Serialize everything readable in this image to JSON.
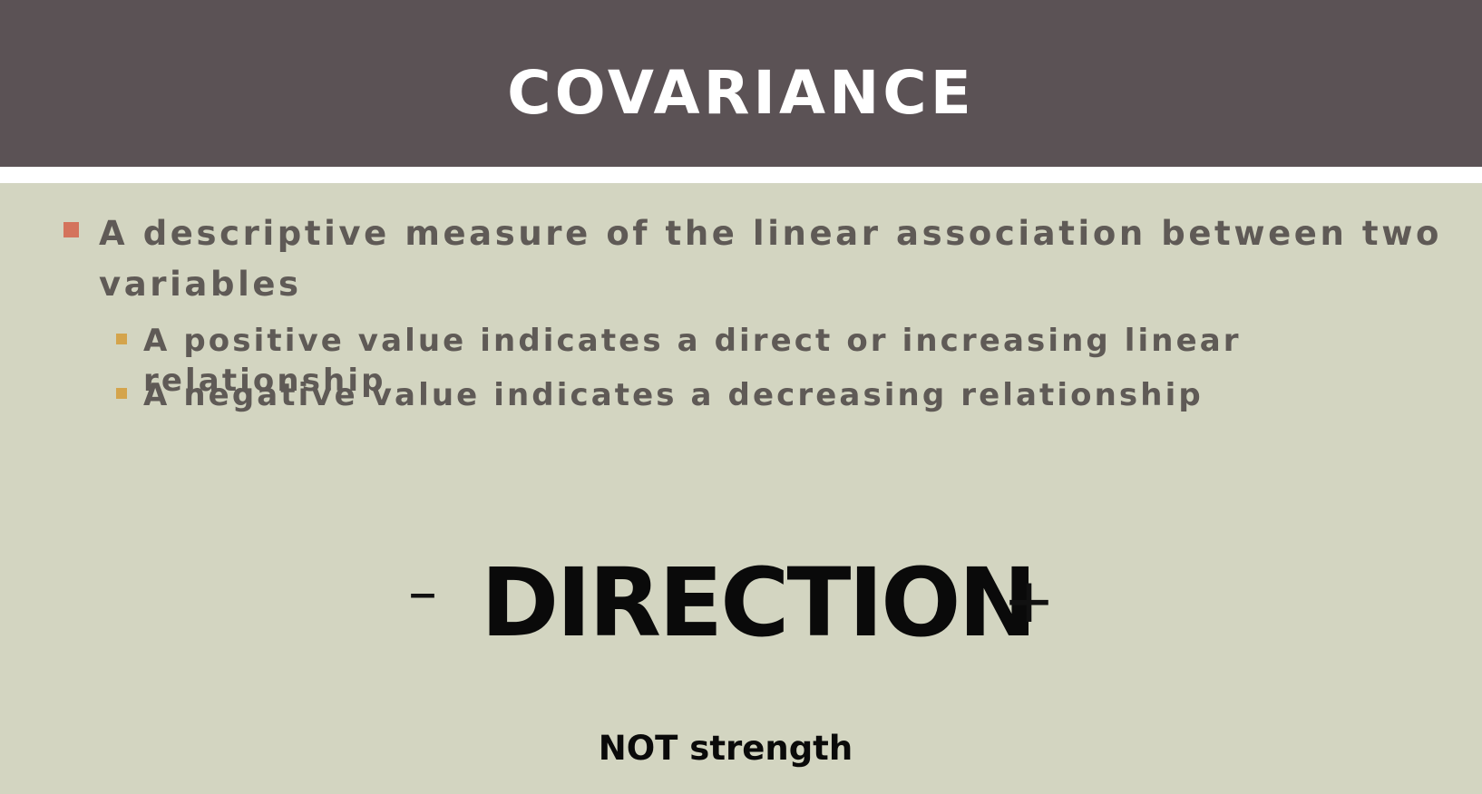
{
  "title": "COVARIANCE",
  "bullets": [
    {
      "text": "A descriptive measure of the linear association between two variables",
      "marker_color": "#d4735c",
      "sub_bullets": [
        {
          "text": "A positive value indicates a direct or increasing linear relationship"
        },
        {
          "text": "A negative value indicates a decreasing relationship"
        }
      ],
      "sub_marker_color": "#d4a44c"
    }
  ],
  "direction": {
    "minus": "–",
    "label": "DIRECTION",
    "plus": "+"
  },
  "footer_note": "NOT strength",
  "colors": {
    "title_bar": "#5b5255",
    "background": "#d3d5c1",
    "bullet_text": "#5f5a56"
  }
}
